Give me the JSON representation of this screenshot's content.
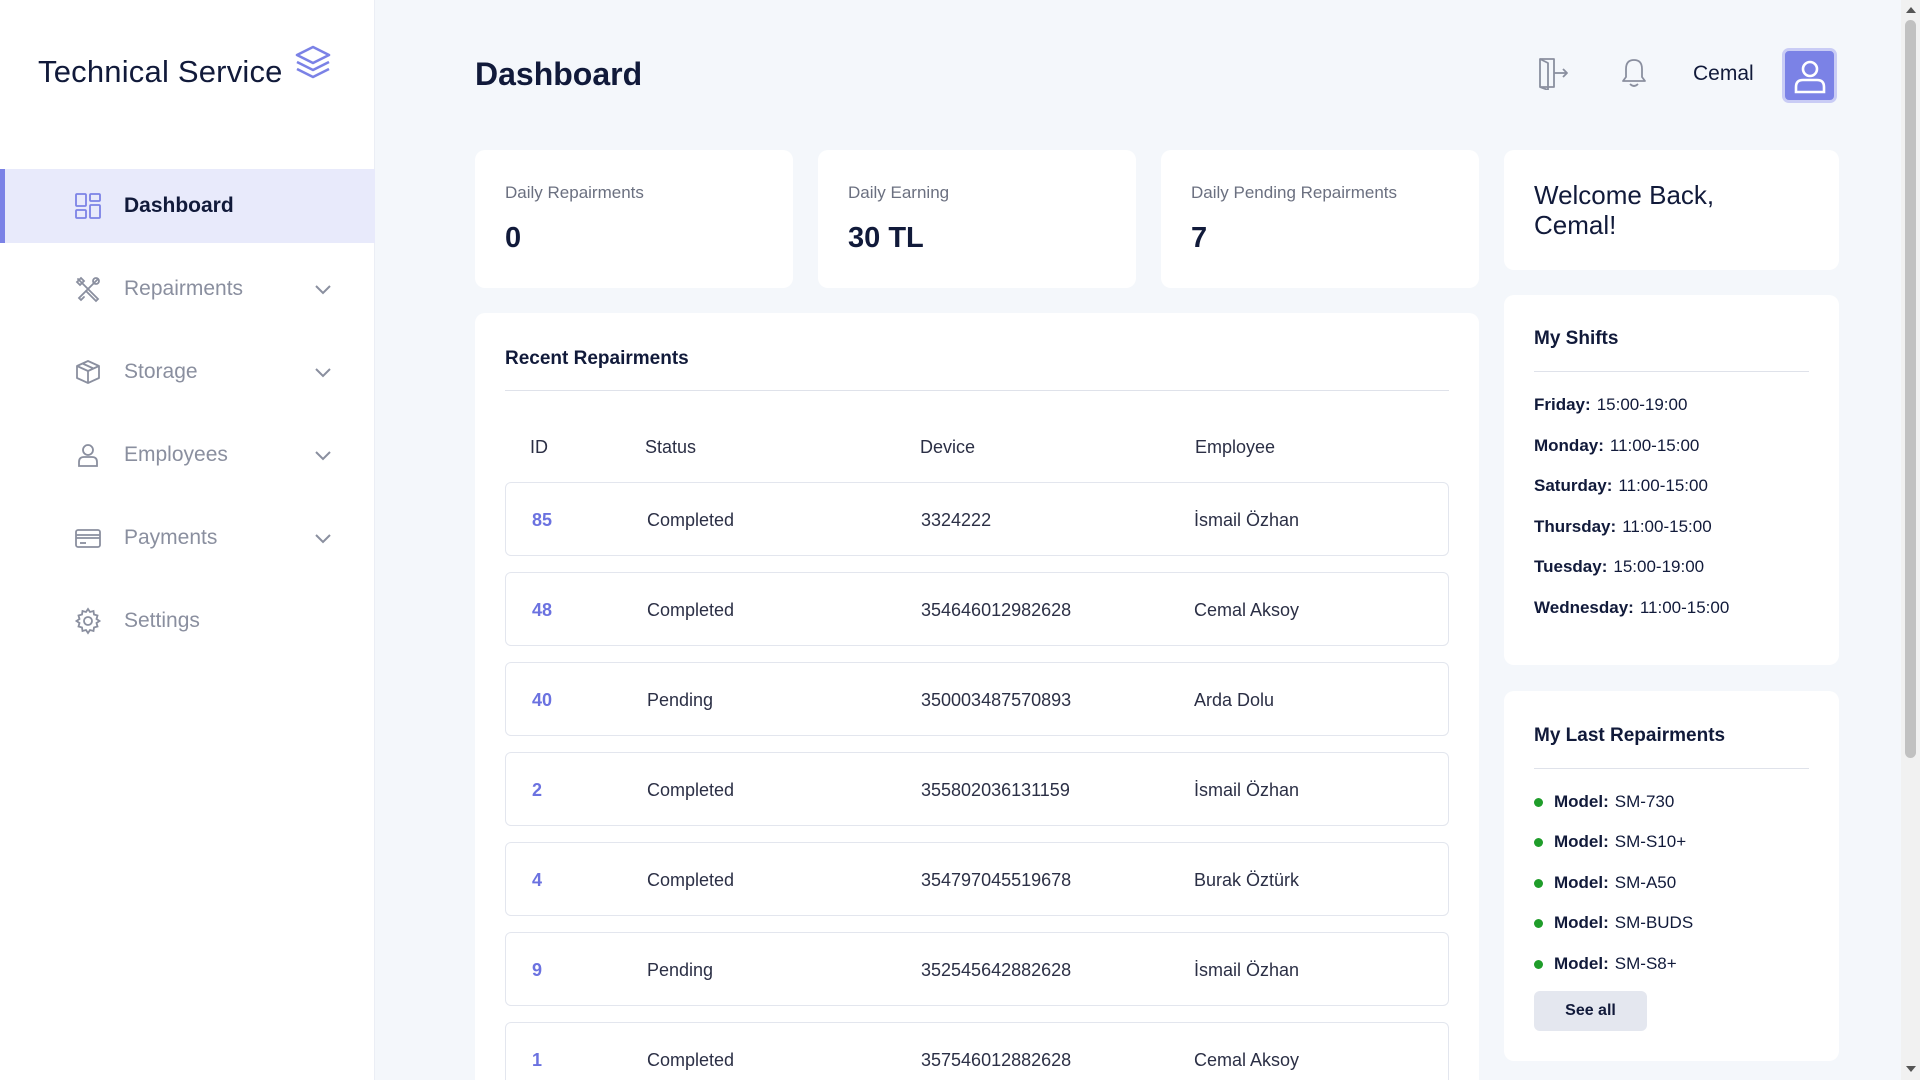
{
  "brand": {
    "title": "Technical Service",
    "icon": "layers-icon"
  },
  "sidebar": {
    "items": [
      {
        "label": "Dashboard",
        "icon": "grid-icon",
        "active": true
      },
      {
        "label": "Repairments",
        "icon": "tools-icon",
        "expandable": true
      },
      {
        "label": "Storage",
        "icon": "box-icon",
        "expandable": true
      },
      {
        "label": "Employees",
        "icon": "user-icon",
        "expandable": true
      },
      {
        "label": "Payments",
        "icon": "card-icon",
        "expandable": true
      },
      {
        "label": "Settings",
        "icon": "gear-icon"
      }
    ]
  },
  "header": {
    "title": "Dashboard",
    "user_name": "Cemal",
    "logout_icon": "logout-icon",
    "bell_icon": "bell-icon"
  },
  "stats": {
    "daily_repairments": {
      "label": "Daily Repairments",
      "value": "0"
    },
    "daily_earning": {
      "label": "Daily Earning",
      "value": "30 TL"
    },
    "daily_pending": {
      "label": "Daily Pending Repairments",
      "value": "7"
    }
  },
  "welcome": {
    "text": "Welcome Back, Cemal!"
  },
  "recent": {
    "title": "Recent Repairments",
    "columns": {
      "id": "ID",
      "status": "Status",
      "device": "Device",
      "employee": "Employee"
    },
    "rows": [
      {
        "id": "85",
        "status": "Completed",
        "device": "3324222",
        "employee": "İsmail Özhan"
      },
      {
        "id": "48",
        "status": "Completed",
        "device": "354646012982628",
        "employee": "Cemal Aksoy"
      },
      {
        "id": "40",
        "status": "Pending",
        "device": "350003487570893",
        "employee": "Arda Dolu"
      },
      {
        "id": "2",
        "status": "Completed",
        "device": "355802036131159",
        "employee": "İsmail Özhan"
      },
      {
        "id": "4",
        "status": "Completed",
        "device": "354797045519678",
        "employee": "Burak Öztürk"
      },
      {
        "id": "9",
        "status": "Pending",
        "device": "352545642882628",
        "employee": "İsmail Özhan"
      },
      {
        "id": "1",
        "status": "Completed",
        "device": "357546012882628",
        "employee": "Cemal Aksoy"
      }
    ]
  },
  "shifts": {
    "title": "My Shifts",
    "items": [
      {
        "day": "Friday:",
        "time": "15:00-19:00"
      },
      {
        "day": "Monday:",
        "time": "11:00-15:00"
      },
      {
        "day": "Saturday:",
        "time": "11:00-15:00"
      },
      {
        "day": "Thursday:",
        "time": "11:00-15:00"
      },
      {
        "day": "Tuesday:",
        "time": "15:00-19:00"
      },
      {
        "day": "Wednesday:",
        "time": "11:00-15:00"
      }
    ]
  },
  "last_repairments": {
    "title": "My Last Repairments",
    "label": "Model:",
    "items": [
      "SM-730",
      "SM-S10+",
      "SM-A50",
      "SM-BUDS",
      "SM-S8+"
    ],
    "see_all": "See all"
  },
  "colors": {
    "accent": "#7b82e6",
    "active_bg": "#e8eafb",
    "status_dot": "#1f9d2a"
  }
}
